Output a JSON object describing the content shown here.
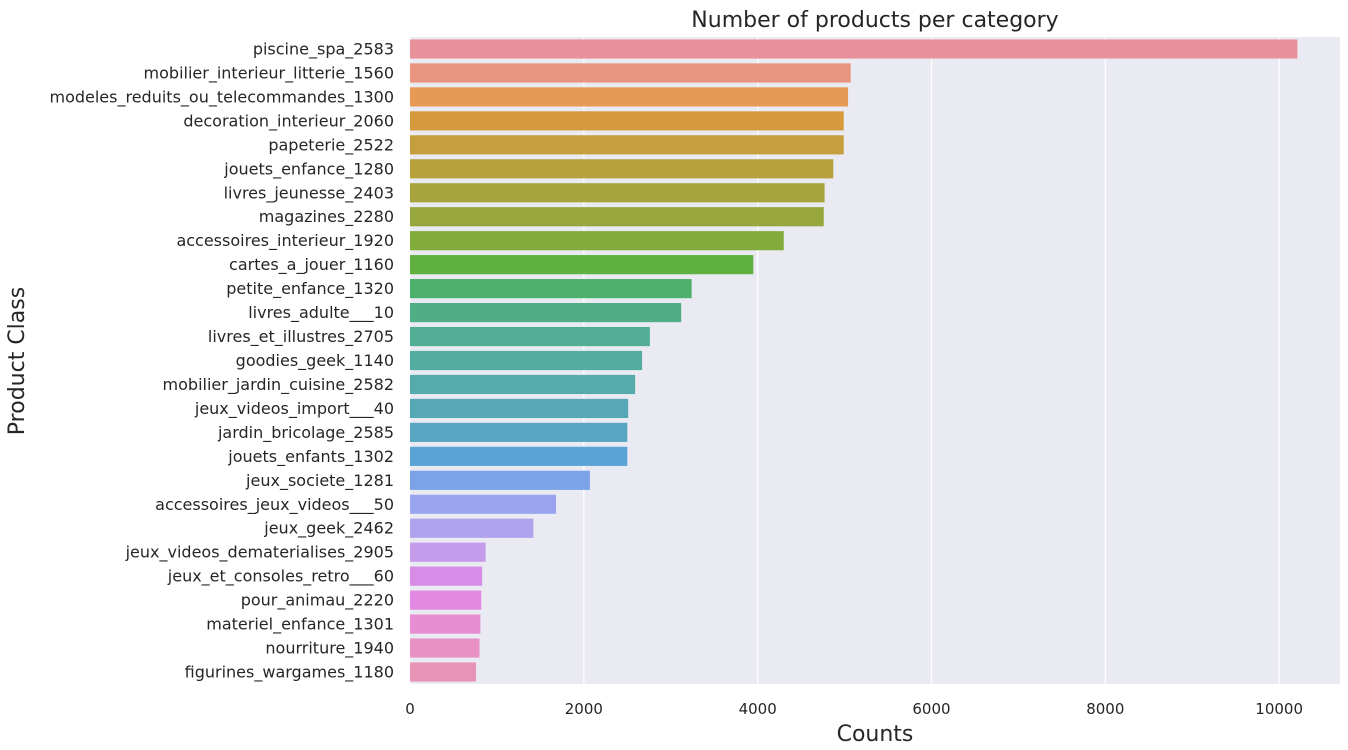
{
  "chart_data": {
    "type": "bar",
    "orientation": "horizontal",
    "title": "Number of products per category",
    "xlabel": "Counts",
    "ylabel": "Product Class",
    "xlim": [
      0,
      10700
    ],
    "xticks": [
      0,
      2000,
      4000,
      6000,
      8000,
      10000
    ],
    "grid": true,
    "background": "#eaeaf2",
    "categories": [
      "piscine_spa_2583",
      "mobilier_interieur_litterie_1560",
      "modeles_reduits_ou_telecommandes_1300",
      "decoration_interieur_2060",
      "papeterie_2522",
      "jouets_enfance_1280",
      "livres_jeunesse_2403",
      "magazines_2280",
      "accessoires_interieur_1920",
      "cartes_a_jouer_1160",
      "petite_enfance_1320",
      "livres_adulte___10",
      "livres_et_illustres_2705",
      "goodies_geek_1140",
      "mobilier_jardin_cuisine_2582",
      "jeux_videos_import___40",
      "jardin_bricolage_2585",
      "jouets_enfants_1302",
      "jeux_societe_1281",
      "accessoires_jeux_videos___50",
      "jeux_geek_2462",
      "jeux_videos_dematerialises_2905",
      "jeux_et_consoles_retro___60",
      "pour_animau_2220",
      "materiel_enfance_1301",
      "nourriture_1940",
      "figurines_wargames_1180"
    ],
    "values": [
      10210,
      5070,
      5040,
      4990,
      4990,
      4870,
      4770,
      4760,
      4300,
      3950,
      3240,
      3120,
      2760,
      2670,
      2590,
      2510,
      2500,
      2500,
      2070,
      1680,
      1420,
      870,
      830,
      820,
      810,
      800,
      760
    ],
    "colors": [
      "#e8919a",
      "#e9947f",
      "#e69a55",
      "#d69a3c",
      "#c69e3d",
      "#b6a13d",
      "#a7a43d",
      "#97a73d",
      "#81ac3c",
      "#5fb03e",
      "#4eb06d",
      "#4fae85",
      "#52ad95",
      "#53aca0",
      "#55aaab",
      "#57a8b7",
      "#58a6c4",
      "#5aa3d7",
      "#7aa3e8",
      "#9aa5f0",
      "#b0a3ed",
      "#c59bec",
      "#d78de8",
      "#e489e1",
      "#e88dd2",
      "#e891c4",
      "#e794b6"
    ]
  }
}
